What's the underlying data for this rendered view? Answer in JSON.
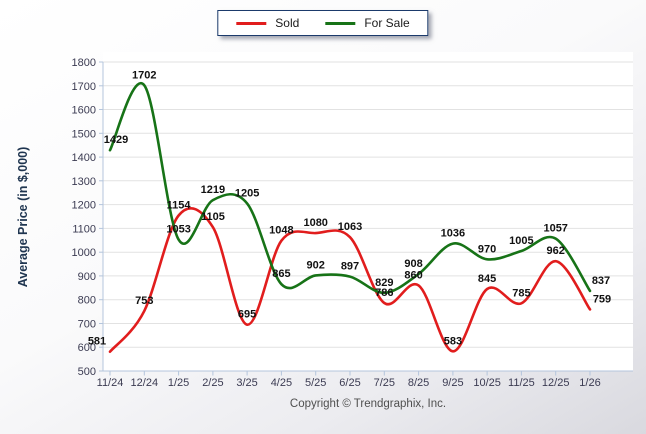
{
  "footer": {
    "copyright": "Copyright © Trendgraphix, Inc."
  },
  "colors": {
    "sold": "#e11d1d",
    "for_sale": "#177317",
    "grid": "#e2e2e2",
    "axis": "#b4c5dc",
    "tick_text": "#3b3b52",
    "point_label_text": "#111111",
    "y_axis_title_text": "#1f3550",
    "plot_background": "#ffffff"
  },
  "chart_data": {
    "type": "line",
    "title": "",
    "xlabel": "",
    "ylabel": "Average Price (in $,000)",
    "categories": [
      "11/24",
      "12/24",
      "1/25",
      "2/25",
      "3/25",
      "4/25",
      "5/25",
      "6/25",
      "7/25",
      "8/25",
      "9/25",
      "10/25",
      "11/25",
      "12/25",
      "1/26"
    ],
    "series": [
      {
        "name": "Sold",
        "color": "#e11d1d",
        "values": [
          581,
          753,
          1154,
          1105,
          695,
          1048,
          1080,
          1063,
          786,
          860,
          583,
          845,
          785,
          962,
          759
        ]
      },
      {
        "name": "For Sale",
        "color": "#177317",
        "values": [
          1429,
          1702,
          1053,
          1219,
          1205,
          865,
          902,
          897,
          829,
          908,
          1036,
          970,
          1005,
          1057,
          837
        ]
      }
    ],
    "ylim": [
      500,
      1800
    ],
    "ytick_step": 100,
    "grid": "horizontal",
    "legend_position": "top-center",
    "show_point_labels": true,
    "smoothing": "catmull-rom",
    "label_dx": {
      "Sold": {
        "0": -13,
        "9": -5,
        "14": 12
      },
      "For Sale": {
        "0": 6,
        "9": -5,
        "14": 11
      }
    }
  }
}
